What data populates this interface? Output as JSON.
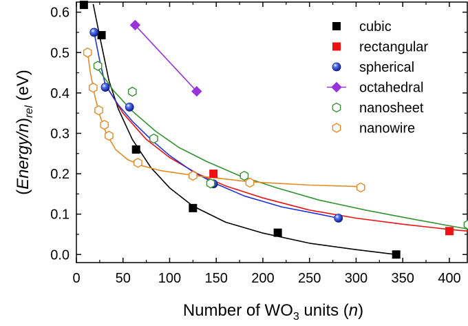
{
  "chart_data": {
    "type": "scatter",
    "xlabel": {
      "pre": "Number of WO",
      "sub": "3",
      "post": " units (",
      "var": "n",
      "close": ")"
    },
    "ylabel": {
      "open": "(",
      "main": "Energy/n",
      "close": ")",
      "sub": "rel",
      "unit": " (eV)"
    },
    "xlim": [
      0,
      420
    ],
    "ylim": [
      -0.02,
      0.625
    ],
    "xticks": [
      0,
      50,
      100,
      150,
      200,
      250,
      300,
      350,
      400
    ],
    "yticks": [
      0.0,
      0.1,
      0.2,
      0.3,
      0.4,
      0.5,
      0.6
    ],
    "ytick_labels": [
      "0.0",
      "0.1",
      "0.2",
      "0.3",
      "0.4",
      "0.5",
      "0.6"
    ],
    "legend_position": "top-right",
    "series": [
      {
        "name": "cubic",
        "marker": "square",
        "color": "#000000",
        "fill": "#000000",
        "points": [
          [
            8,
            0.618
          ],
          [
            27,
            0.543
          ],
          [
            64,
            0.26
          ],
          [
            125,
            0.115
          ],
          [
            216,
            0.054
          ],
          [
            343,
            0.0
          ]
        ],
        "curve": [
          [
            18,
            0.62
          ],
          [
            25,
            0.54
          ],
          [
            35,
            0.43
          ],
          [
            45,
            0.36
          ],
          [
            60,
            0.285
          ],
          [
            80,
            0.215
          ],
          [
            100,
            0.165
          ],
          [
            125,
            0.12
          ],
          [
            160,
            0.08
          ],
          [
            200,
            0.053
          ],
          [
            250,
            0.028
          ],
          [
            300,
            0.012
          ],
          [
            343,
            0.0
          ]
        ]
      },
      {
        "name": "rectangular",
        "marker": "square",
        "color": "#ee1111",
        "fill": "#ee1111",
        "points": [
          [
            147,
            0.2
          ],
          [
            400,
            0.058
          ]
        ],
        "curve": [
          [
            30,
            0.425
          ],
          [
            50,
            0.35
          ],
          [
            75,
            0.285
          ],
          [
            100,
            0.24
          ],
          [
            130,
            0.2
          ],
          [
            160,
            0.17
          ],
          [
            200,
            0.14
          ],
          [
            250,
            0.11
          ],
          [
            300,
            0.09
          ],
          [
            350,
            0.075
          ],
          [
            400,
            0.062
          ],
          [
            420,
            0.058
          ]
        ]
      },
      {
        "name": "spherical",
        "marker": "sphere",
        "color": "#1a32d8",
        "fill": "#1a32d8",
        "points": [
          [
            19,
            0.55
          ],
          [
            31,
            0.414
          ],
          [
            57,
            0.365
          ],
          [
            147,
            0.175
          ],
          [
            281,
            0.09
          ]
        ],
        "curve": [
          [
            19,
            0.55
          ],
          [
            25,
            0.48
          ],
          [
            31,
            0.42
          ],
          [
            45,
            0.37
          ],
          [
            60,
            0.33
          ],
          [
            80,
            0.285
          ],
          [
            100,
            0.245
          ],
          [
            125,
            0.205
          ],
          [
            147,
            0.178
          ],
          [
            180,
            0.145
          ],
          [
            220,
            0.118
          ],
          [
            260,
            0.1
          ],
          [
            281,
            0.09
          ]
        ]
      },
      {
        "name": "octahedral",
        "marker": "diamond",
        "color": "#9933dd",
        "fill": "#9933dd",
        "points": [
          [
            63,
            0.568
          ],
          [
            129,
            0.404
          ]
        ],
        "curve": [
          [
            63,
            0.568
          ],
          [
            129,
            0.404
          ]
        ]
      },
      {
        "name": "nanosheet",
        "marker": "hexagon",
        "color": "#33922f",
        "fill": "none",
        "points": [
          [
            23,
            0.467
          ],
          [
            60,
            0.403
          ],
          [
            83,
            0.287
          ],
          [
            144,
            0.176
          ],
          [
            180,
            0.195
          ],
          [
            420,
            0.074
          ]
        ],
        "curve": [
          [
            23,
            0.46
          ],
          [
            40,
            0.405
          ],
          [
            60,
            0.355
          ],
          [
            85,
            0.305
          ],
          [
            110,
            0.265
          ],
          [
            140,
            0.23
          ],
          [
            175,
            0.195
          ],
          [
            215,
            0.165
          ],
          [
            260,
            0.135
          ],
          [
            310,
            0.11
          ],
          [
            360,
            0.088
          ],
          [
            420,
            0.063
          ]
        ]
      },
      {
        "name": "nanowire",
        "marker": "hexagon",
        "color": "#e58a22",
        "fill": "none",
        "points": [
          [
            12,
            0.5
          ],
          [
            18,
            0.413
          ],
          [
            24,
            0.357
          ],
          [
            30,
            0.321
          ],
          [
            35,
            0.294
          ],
          [
            66,
            0.227
          ],
          [
            125,
            0.195
          ],
          [
            186,
            0.178
          ],
          [
            305,
            0.166
          ]
        ],
        "curve": [
          [
            12,
            0.5
          ],
          [
            15,
            0.45
          ],
          [
            20,
            0.39
          ],
          [
            25,
            0.345
          ],
          [
            32,
            0.3
          ],
          [
            42,
            0.26
          ],
          [
            55,
            0.235
          ],
          [
            70,
            0.22
          ],
          [
            90,
            0.208
          ],
          [
            125,
            0.196
          ],
          [
            186,
            0.18
          ],
          [
            250,
            0.172
          ],
          [
            305,
            0.168
          ]
        ]
      }
    ]
  }
}
